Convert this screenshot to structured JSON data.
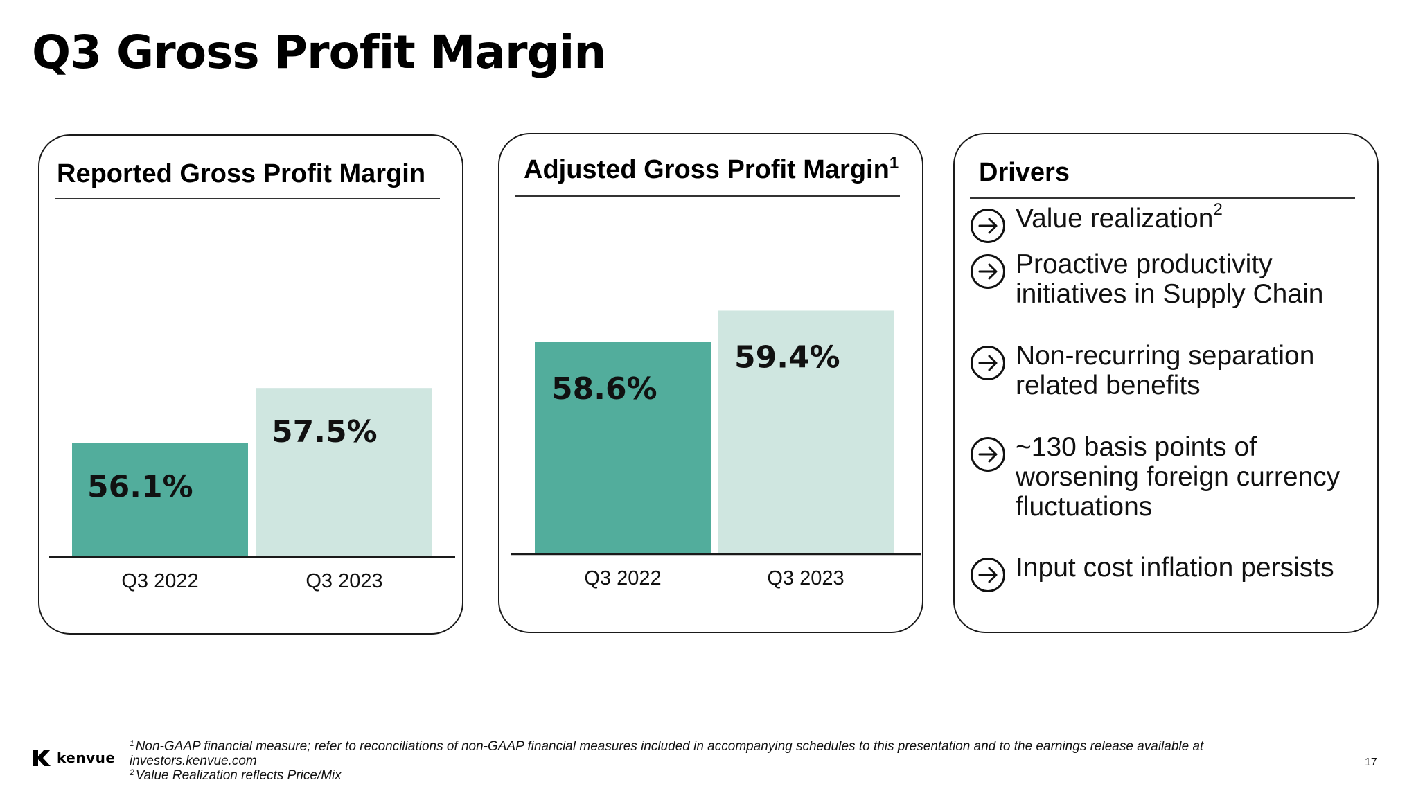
{
  "title": "Q3 Gross Profit Margin",
  "colors": {
    "bar_dark": "#52ad9c",
    "bar_light": "#cfe6e0",
    "axis": "#1a1a1a"
  },
  "chart_data": [
    {
      "type": "bar",
      "title": "Reported Gross Profit Margin",
      "categories": [
        "Q3 2022",
        "Q3 2023"
      ],
      "values": [
        56.1,
        57.5
      ],
      "value_labels": [
        "56.1%",
        "57.5%"
      ],
      "unit": "%",
      "xlabel": "",
      "ylabel": "",
      "grid": false,
      "legend": "none"
    },
    {
      "type": "bar",
      "title": "Adjusted Gross Profit Margin",
      "title_sup": "1",
      "categories": [
        "Q3 2022",
        "Q3 2023"
      ],
      "values": [
        58.6,
        59.4
      ],
      "value_labels": [
        "58.6%",
        "59.4%"
      ],
      "unit": "%",
      "xlabel": "",
      "ylabel": "",
      "grid": false,
      "legend": "none"
    }
  ],
  "drivers": {
    "title": "Drivers",
    "items": [
      {
        "icon": "arrow-circle-icon",
        "text": "Value realization",
        "sup": "2"
      },
      {
        "icon": "arrow-circle-icon",
        "text": "Proactive productivity\ninitiatives in Supply Chain",
        "sup": ""
      },
      {
        "icon": "arrow-circle-icon",
        "text": "Non-recurring separation\nrelated benefits",
        "sup": ""
      },
      {
        "icon": "arrow-circle-icon",
        "text": "~130 basis points of\nworsening foreign currency\nfluctuations",
        "sup": ""
      },
      {
        "icon": "arrow-circle-icon",
        "text": "Input cost inflation persists",
        "sup": ""
      }
    ]
  },
  "footer": {
    "logo_text": "kenvue",
    "footnote_1_marker": "1",
    "footnote_1": "Non-GAAP financial measure; refer to reconciliations of non-GAAP financial measures included in accompanying schedules to this presentation and to the earnings release available at investors.kenvue.com",
    "footnote_2_marker": "2",
    "footnote_2": "Value Realization reflects Price/Mix",
    "page_number": "17"
  }
}
